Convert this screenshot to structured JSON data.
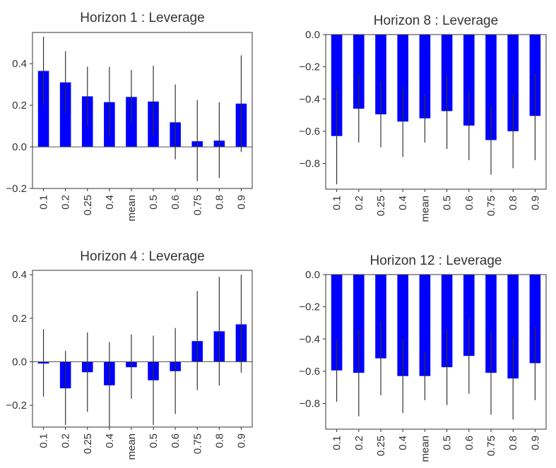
{
  "chart_data": [
    {
      "type": "bar",
      "title": "Horizon 1 : Leverage",
      "categories": [
        "0.1",
        "0.2",
        "0.25",
        "0.4",
        "mean",
        "0.5",
        "0.6",
        "0.75",
        "0.8",
        "0.9"
      ],
      "values": [
        0.365,
        0.31,
        0.243,
        0.215,
        0.24,
        0.218,
        0.118,
        0.027,
        0.03,
        0.208
      ],
      "error_low": [
        0.2,
        0.16,
        0.1,
        0.05,
        0.11,
        0.05,
        -0.06,
        -0.165,
        -0.15,
        -0.025
      ],
      "error_high": [
        0.53,
        0.46,
        0.385,
        0.385,
        0.37,
        0.39,
        0.3,
        0.225,
        0.215,
        0.44
      ],
      "ylim": [
        -0.2,
        0.55
      ],
      "yticks": [
        "−0.2",
        "0.0",
        "0.2",
        "0.4"
      ],
      "color": "#0000ff"
    },
    {
      "type": "bar",
      "title": "Horizon 8 : Leverage",
      "categories": [
        "0.1",
        "0.2",
        "0.25",
        "0.4",
        "mean",
        "0.5",
        "0.6",
        "0.75",
        "0.8",
        "0.9"
      ],
      "values": [
        -0.63,
        -0.46,
        -0.495,
        -0.54,
        -0.52,
        -0.475,
        -0.565,
        -0.655,
        -0.6,
        -0.505
      ],
      "error_low": [
        -0.93,
        -0.67,
        -0.7,
        -0.76,
        -0.67,
        -0.71,
        -0.78,
        -0.87,
        -0.83,
        -0.78
      ],
      "error_high": [
        -0.34,
        -0.25,
        -0.29,
        -0.32,
        -0.37,
        -0.25,
        -0.35,
        -0.44,
        -0.37,
        -0.24
      ],
      "ylim": [
        -0.96,
        0.0
      ],
      "yticks": [
        "0.0",
        "−0.2",
        "−0.4",
        "−0.6",
        "−0.8"
      ],
      "color": "#0000ff"
    },
    {
      "type": "bar",
      "title": "Horizon 4 : Leverage",
      "categories": [
        "0.1",
        "0.2",
        "0.25",
        "0.4",
        "mean",
        "0.5",
        "0.6",
        "0.75",
        "0.8",
        "0.9"
      ],
      "values": [
        -0.008,
        -0.122,
        -0.048,
        -0.108,
        -0.025,
        -0.085,
        -0.043,
        0.095,
        0.14,
        0.172
      ],
      "error_low": [
        -0.16,
        -0.29,
        -0.23,
        -0.3,
        -0.17,
        -0.29,
        -0.24,
        -0.13,
        -0.11,
        -0.05
      ],
      "error_high": [
        0.15,
        0.05,
        0.135,
        0.09,
        0.125,
        0.12,
        0.155,
        0.325,
        0.39,
        0.4
      ],
      "ylim": [
        -0.3,
        0.42
      ],
      "yticks": [
        "−0.2",
        "0.0",
        "0.2",
        "0.4"
      ],
      "color": "#0000ff"
    },
    {
      "type": "bar",
      "title": "Horizon 12 : Leverage",
      "categories": [
        "0.1",
        "0.2",
        "0.25",
        "0.4",
        "mean",
        "0.5",
        "0.6",
        "0.75",
        "0.8",
        "0.9"
      ],
      "values": [
        -0.595,
        -0.61,
        -0.52,
        -0.63,
        -0.63,
        -0.575,
        -0.505,
        -0.61,
        -0.645,
        -0.55
      ],
      "error_low": [
        -0.79,
        -0.88,
        -0.75,
        -0.86,
        -0.78,
        -0.81,
        -0.74,
        -0.87,
        -0.9,
        -0.78
      ],
      "error_high": [
        -0.4,
        -0.34,
        -0.29,
        -0.4,
        -0.48,
        -0.34,
        -0.27,
        -0.35,
        -0.39,
        -0.32
      ],
      "ylim": [
        -0.96,
        0.0
      ],
      "yticks": [
        "0.0",
        "−0.2",
        "−0.4",
        "−0.6",
        "−0.8"
      ],
      "color": "#0000ff"
    }
  ]
}
